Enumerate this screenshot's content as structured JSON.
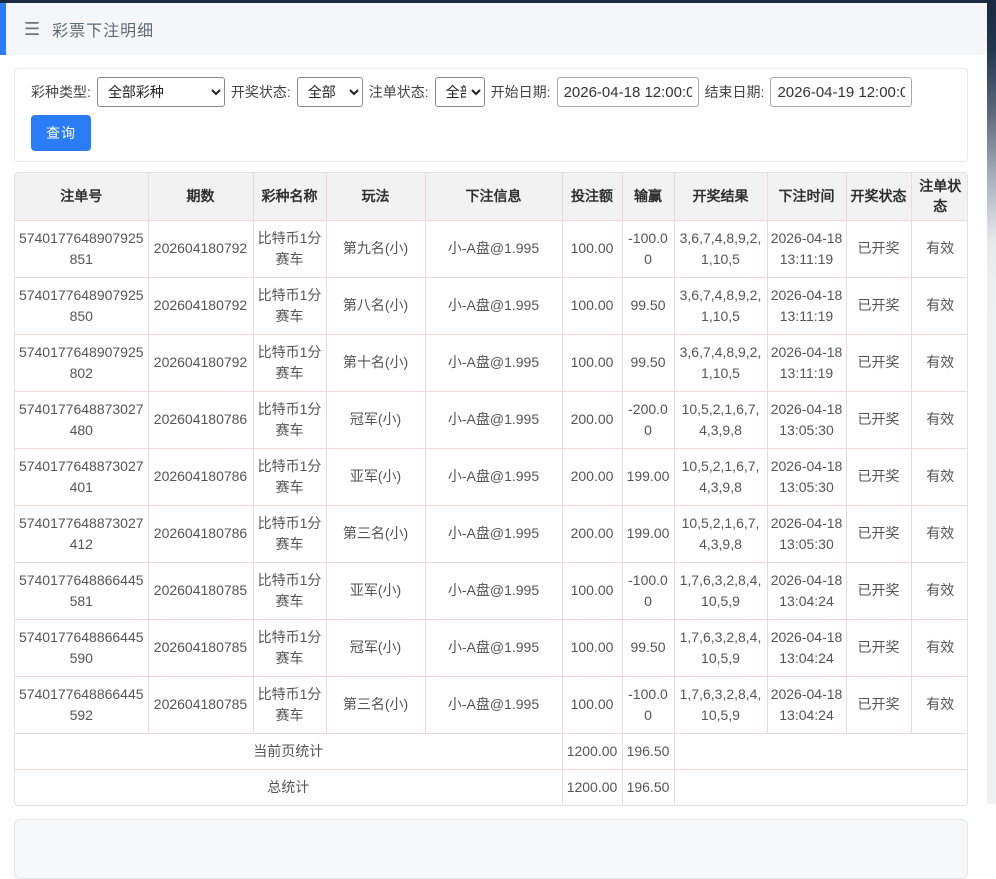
{
  "header": {
    "title": "彩票下注明细"
  },
  "filters": {
    "lottery_type_label": "彩种类型:",
    "lottery_type_value": "全部彩种",
    "draw_status_label": "开奖状态:",
    "draw_status_value": "全部",
    "bet_status_label": "注单状态:",
    "bet_status_value": "全部",
    "start_date_label": "开始日期:",
    "start_date_value": "2026-04-18 12:00:00",
    "end_date_label": "结束日期:",
    "end_date_value": "2026-04-19 12:00:00",
    "query_button": "查询"
  },
  "table": {
    "columns": [
      "注单号",
      "期数",
      "彩种名称",
      "玩法",
      "下注信息",
      "投注额",
      "输赢",
      "开奖结果",
      "下注时间",
      "开奖状态",
      "注单状态"
    ],
    "rows": [
      [
        "5740177648907925851",
        "202604180792",
        "比特币1分赛车",
        "第九名(小)",
        "小-A盘@1.995",
        "100.00",
        "-100.00",
        "3,6,7,4,8,9,2,1,10,5",
        "2026-04-18 13:11:19",
        "已开奖",
        "有效"
      ],
      [
        "5740177648907925850",
        "202604180792",
        "比特币1分赛车",
        "第八名(小)",
        "小-A盘@1.995",
        "100.00",
        "99.50",
        "3,6,7,4,8,9,2,1,10,5",
        "2026-04-18 13:11:19",
        "已开奖",
        "有效"
      ],
      [
        "5740177648907925802",
        "202604180792",
        "比特币1分赛车",
        "第十名(小)",
        "小-A盘@1.995",
        "100.00",
        "99.50",
        "3,6,7,4,8,9,2,1,10,5",
        "2026-04-18 13:11:19",
        "已开奖",
        "有效"
      ],
      [
        "5740177648873027480",
        "202604180786",
        "比特币1分赛车",
        "冠军(小)",
        "小-A盘@1.995",
        "200.00",
        "-200.00",
        "10,5,2,1,6,7,4,3,9,8",
        "2026-04-18 13:05:30",
        "已开奖",
        "有效"
      ],
      [
        "5740177648873027401",
        "202604180786",
        "比特币1分赛车",
        "亚军(小)",
        "小-A盘@1.995",
        "200.00",
        "199.00",
        "10,5,2,1,6,7,4,3,9,8",
        "2026-04-18 13:05:30",
        "已开奖",
        "有效"
      ],
      [
        "5740177648873027412",
        "202604180786",
        "比特币1分赛车",
        "第三名(小)",
        "小-A盘@1.995",
        "200.00",
        "199.00",
        "10,5,2,1,6,7,4,3,9,8",
        "2026-04-18 13:05:30",
        "已开奖",
        "有效"
      ],
      [
        "5740177648866445581",
        "202604180785",
        "比特币1分赛车",
        "亚军(小)",
        "小-A盘@1.995",
        "100.00",
        "-100.00",
        "1,7,6,3,2,8,4,10,5,9",
        "2026-04-18 13:04:24",
        "已开奖",
        "有效"
      ],
      [
        "5740177648866445590",
        "202604180785",
        "比特币1分赛车",
        "冠军(小)",
        "小-A盘@1.995",
        "100.00",
        "99.50",
        "1,7,6,3,2,8,4,10,5,9",
        "2026-04-18 13:04:24",
        "已开奖",
        "有效"
      ],
      [
        "5740177648866445592",
        "202604180785",
        "比特币1分赛车",
        "第三名(小)",
        "小-A盘@1.995",
        "100.00",
        "-100.00",
        "1,7,6,3,2,8,4,10,5,9",
        "2026-04-18 13:04:24",
        "已开奖",
        "有效"
      ]
    ],
    "summary": [
      {
        "label": "当前页统计",
        "bet_total": "1200.00",
        "win_total": "196.50"
      },
      {
        "label": "总统计",
        "bet_total": "1200.00",
        "win_total": "196.50"
      }
    ]
  },
  "colors": {
    "accent_blue": "#2b7cf7",
    "top_bar_dark": "#1c2a40",
    "appbar_bg": "#f4f6f9",
    "table_inner_border": "#f0d8d8",
    "header_row_bg": "#f2f2f2"
  },
  "icons": {
    "menu": "☰"
  }
}
